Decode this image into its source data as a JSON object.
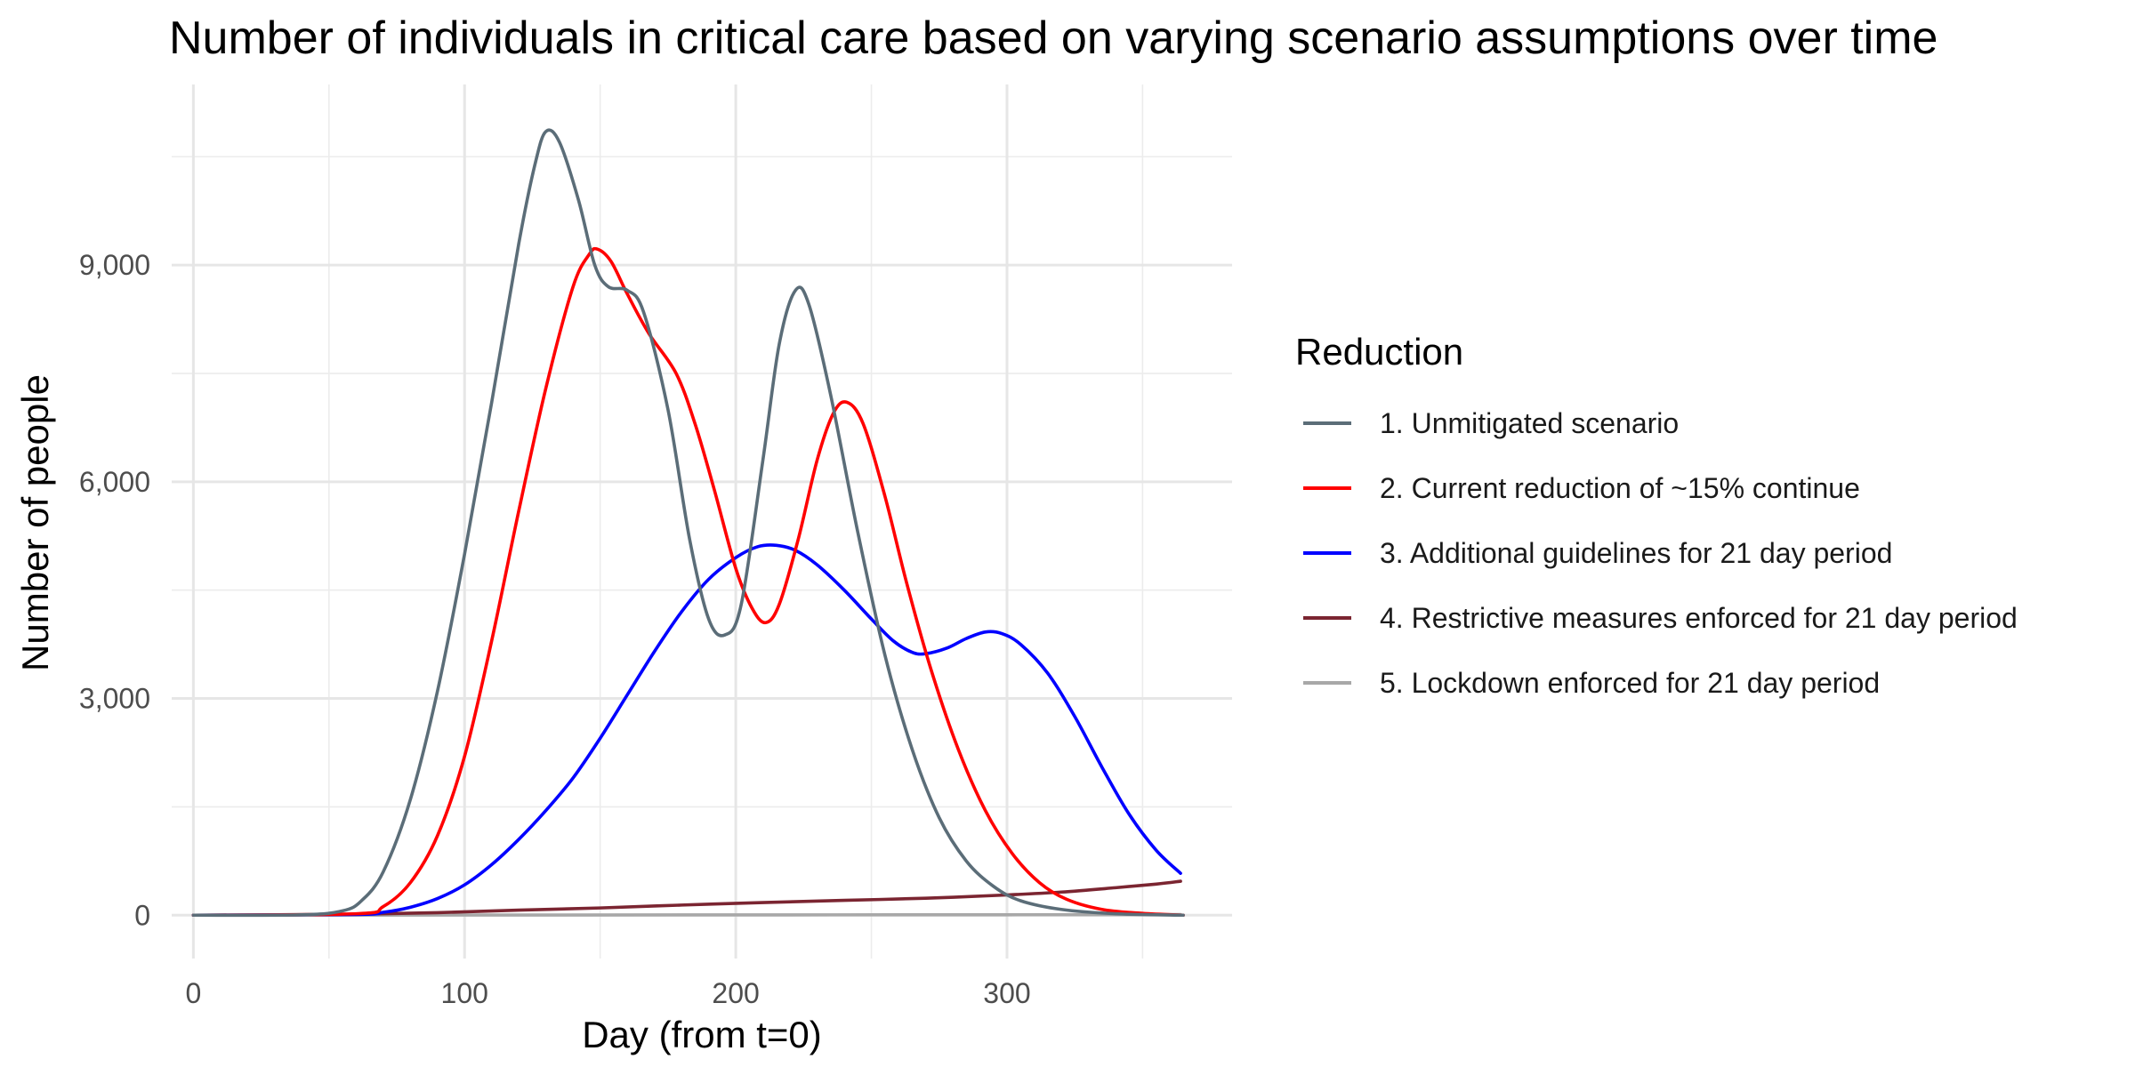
{
  "chart_data": {
    "type": "line",
    "title": "Number of individuals in critical care based on varying scenario assumptions over time",
    "xlabel": "Day (from t=0)",
    "ylabel": "Number of people",
    "xlim": [
      -8,
      383
    ],
    "ylim": [
      -600,
      11500
    ],
    "x_ticks": [
      {
        "value": 0,
        "label": "0"
      },
      {
        "value": 100,
        "label": "100"
      },
      {
        "value": 200,
        "label": "200"
      },
      {
        "value": 300,
        "label": "300"
      }
    ],
    "y_ticks": [
      {
        "value": 0,
        "label": "0"
      },
      {
        "value": 3000,
        "label": "3,000"
      },
      {
        "value": 6000,
        "label": "6,000"
      },
      {
        "value": 9000,
        "label": "9,000"
      }
    ],
    "grid": true,
    "legend": {
      "title": "Reduction",
      "position": "right"
    },
    "series": [
      {
        "name": "1. Unmitigated scenario",
        "color": "#5b6d78",
        "points": [
          [
            0,
            0
          ],
          [
            40,
            5
          ],
          [
            55,
            60
          ],
          [
            62,
            200
          ],
          [
            70,
            600
          ],
          [
            80,
            1600
          ],
          [
            90,
            3100
          ],
          [
            100,
            5000
          ],
          [
            110,
            7100
          ],
          [
            120,
            9300
          ],
          [
            126,
            10400
          ],
          [
            130,
            10850
          ],
          [
            135,
            10700
          ],
          [
            142,
            9900
          ],
          [
            148,
            9000
          ],
          [
            153,
            8700
          ],
          [
            160,
            8650
          ],
          [
            166,
            8350
          ],
          [
            175,
            7000
          ],
          [
            183,
            5200
          ],
          [
            190,
            4100
          ],
          [
            196,
            3880
          ],
          [
            202,
            4300
          ],
          [
            210,
            6300
          ],
          [
            216,
            7900
          ],
          [
            222,
            8650
          ],
          [
            227,
            8450
          ],
          [
            235,
            7200
          ],
          [
            245,
            5300
          ],
          [
            255,
            3600
          ],
          [
            265,
            2300
          ],
          [
            275,
            1350
          ],
          [
            285,
            750
          ],
          [
            295,
            400
          ],
          [
            305,
            200
          ],
          [
            320,
            80
          ],
          [
            340,
            20
          ],
          [
            365,
            0
          ]
        ]
      },
      {
        "name": "2. Current reduction of ~15% continue",
        "color": "#ff0000",
        "points": [
          [
            0,
            0
          ],
          [
            60,
            20
          ],
          [
            70,
            120
          ],
          [
            80,
            450
          ],
          [
            90,
            1100
          ],
          [
            100,
            2200
          ],
          [
            110,
            3800
          ],
          [
            120,
            5600
          ],
          [
            130,
            7300
          ],
          [
            140,
            8700
          ],
          [
            146,
            9150
          ],
          [
            149,
            9220
          ],
          [
            154,
            9050
          ],
          [
            160,
            8600
          ],
          [
            168,
            8050
          ],
          [
            178,
            7500
          ],
          [
            185,
            6800
          ],
          [
            192,
            5900
          ],
          [
            200,
            4800
          ],
          [
            206,
            4250
          ],
          [
            211,
            4050
          ],
          [
            216,
            4300
          ],
          [
            223,
            5200
          ],
          [
            230,
            6300
          ],
          [
            236,
            6950
          ],
          [
            241,
            7100
          ],
          [
            247,
            6800
          ],
          [
            255,
            5800
          ],
          [
            263,
            4600
          ],
          [
            272,
            3400
          ],
          [
            282,
            2300
          ],
          [
            292,
            1450
          ],
          [
            302,
            850
          ],
          [
            312,
            450
          ],
          [
            322,
            220
          ],
          [
            335,
            80
          ],
          [
            350,
            25
          ],
          [
            365,
            0
          ]
        ]
      },
      {
        "name": "3. Additional guidelines for 21 day period",
        "color": "#0000ff",
        "points": [
          [
            0,
            0
          ],
          [
            60,
            10
          ],
          [
            70,
            40
          ],
          [
            80,
            110
          ],
          [
            90,
            230
          ],
          [
            100,
            420
          ],
          [
            110,
            700
          ],
          [
            120,
            1050
          ],
          [
            130,
            1450
          ],
          [
            140,
            1900
          ],
          [
            150,
            2450
          ],
          [
            160,
            3050
          ],
          [
            170,
            3650
          ],
          [
            180,
            4200
          ],
          [
            190,
            4650
          ],
          [
            200,
            4950
          ],
          [
            208,
            5100
          ],
          [
            215,
            5120
          ],
          [
            222,
            5050
          ],
          [
            230,
            4850
          ],
          [
            240,
            4500
          ],
          [
            250,
            4100
          ],
          [
            258,
            3800
          ],
          [
            265,
            3640
          ],
          [
            270,
            3620
          ],
          [
            278,
            3700
          ],
          [
            285,
            3830
          ],
          [
            292,
            3920
          ],
          [
            298,
            3900
          ],
          [
            305,
            3750
          ],
          [
            315,
            3350
          ],
          [
            325,
            2750
          ],
          [
            335,
            2050
          ],
          [
            345,
            1400
          ],
          [
            355,
            900
          ],
          [
            364,
            580
          ]
        ]
      },
      {
        "name": "4. Restrictive measures enforced for 21 day period",
        "color": "#7b2531",
        "points": [
          [
            0,
            0
          ],
          [
            30,
            5
          ],
          [
            60,
            15
          ],
          [
            90,
            35
          ],
          [
            120,
            70
          ],
          [
            150,
            100
          ],
          [
            180,
            140
          ],
          [
            210,
            175
          ],
          [
            240,
            205
          ],
          [
            270,
            235
          ],
          [
            300,
            280
          ],
          [
            320,
            320
          ],
          [
            340,
            380
          ],
          [
            355,
            430
          ],
          [
            364,
            470
          ]
        ]
      },
      {
        "name": "5. Lockdown enforced for 21 day period",
        "color": "#a8a8a8",
        "points": [
          [
            0,
            0
          ],
          [
            100,
            2
          ],
          [
            200,
            4
          ],
          [
            300,
            6
          ],
          [
            364,
            8
          ]
        ]
      }
    ]
  }
}
